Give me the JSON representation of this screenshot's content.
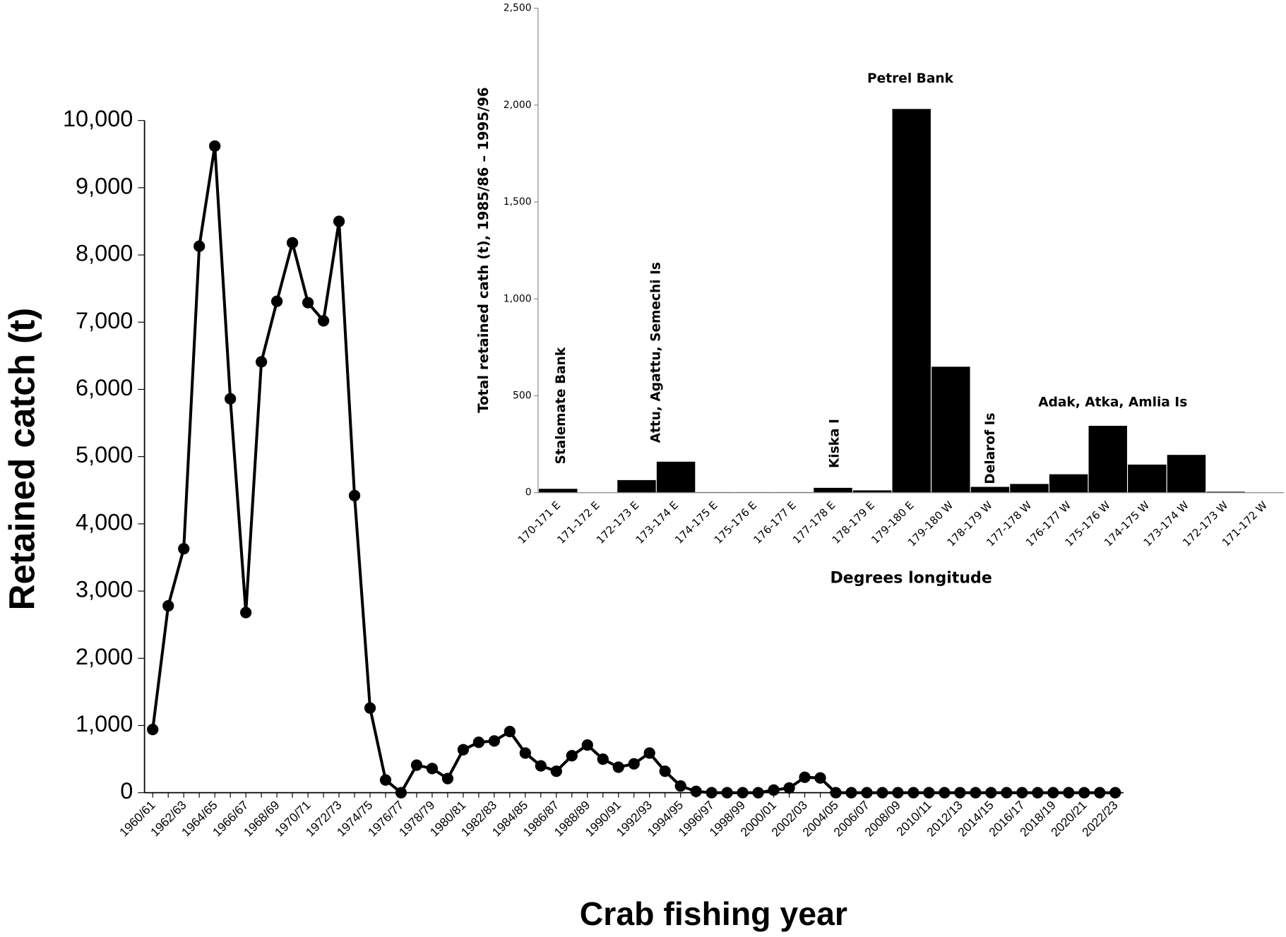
{
  "chart_data": [
    {
      "type": "line",
      "y_label": "Retained catch (t)",
      "x_label": "Crab fishing year",
      "categories": [
        "1960/61",
        null,
        "1962/63",
        null,
        "1964/65",
        null,
        "1966/67",
        null,
        "1968/69",
        null,
        "1970/71",
        null,
        "1972/73",
        null,
        "1974/75",
        null,
        "1976/77",
        null,
        "1978/79",
        null,
        "1980/81",
        null,
        "1982/83",
        null,
        "1984/85",
        null,
        "1986/87",
        null,
        "1988/89",
        null,
        "1990/91",
        null,
        "1992/93",
        null,
        "1994/95",
        null,
        "1996/97",
        null,
        "1998/99",
        null,
        "2000/01",
        null,
        "2002/03",
        null,
        "2004/05",
        null,
        "2006/07",
        null,
        "2008/09",
        null,
        "2010/11",
        null,
        "2012/13",
        null,
        "2014/15",
        null,
        "2016/17",
        null,
        "2018/19",
        null,
        "2020/21",
        null,
        "2022/23"
      ],
      "values": [
        940,
        2780,
        3630,
        8130,
        9620,
        5860,
        2680,
        6410,
        7310,
        8180,
        7290,
        7020,
        8500,
        4420,
        1260,
        190,
        0,
        410,
        360,
        210,
        640,
        750,
        770,
        910,
        590,
        400,
        320,
        550,
        710,
        500,
        380,
        430,
        590,
        320,
        100,
        20,
        0,
        0,
        0,
        0,
        40,
        70,
        230,
        220,
        0,
        0,
        0,
        0,
        0,
        0,
        0,
        0,
        0,
        0,
        0,
        0,
        0,
        0,
        0,
        0,
        0,
        0,
        0
      ],
      "color": "#000000",
      "ylim": [
        0,
        10000
      ],
      "yticks": [
        0,
        {
          "value": 1000,
          "label": "1,000"
        },
        {
          "value": 2000,
          "label": "2,000"
        },
        {
          "value": 3000,
          "label": "3,000"
        },
        {
          "value": 4000,
          "label": "4,000"
        },
        {
          "value": 5000,
          "label": "5,000"
        },
        {
          "value": 6000,
          "label": "6,000"
        },
        {
          "value": 7000,
          "label": "7,000"
        },
        {
          "value": 8000,
          "label": "8,000"
        },
        {
          "value": 9000,
          "label": "9,000"
        },
        {
          "value": 10000,
          "label": "10,000"
        }
      ],
      "grid": false
    },
    {
      "type": "bar",
      "y_label": "Total retained cath (t), 1985/86 – 1995/96",
      "x_label": "Degrees longitude",
      "categories": [
        "170-171 E",
        "171-172 E",
        "172-173 E",
        "173-174 E",
        "174-175 E",
        "175-176 E",
        "176-177 E",
        "177-178 E",
        "178-179 E",
        "179-180 E",
        "179-180 W",
        "178-179 W",
        "177-178 W",
        "176-177 W",
        "175-176 W",
        "174-175 W",
        "173-174 W",
        "172-173 W",
        "171-172 W"
      ],
      "values": [
        20,
        0,
        65,
        160,
        3,
        3,
        3,
        25,
        12,
        1980,
        650,
        30,
        45,
        95,
        345,
        145,
        195,
        5,
        0
      ],
      "color": "#000000",
      "ylim": [
        0,
        2500
      ],
      "yticks": [
        0,
        500,
        {
          "value": 1000,
          "label": "1,000"
        },
        {
          "value": 1500,
          "label": "1,500"
        },
        {
          "value": 2000,
          "label": "2,000"
        },
        {
          "value": 2500,
          "label": "2,500"
        }
      ],
      "annotations": [
        "Stalemate Bank",
        "Attu, Agattu, Semechi Is",
        "Kiska I",
        "Petrel Bank",
        "Delarof Is",
        "Adak, Atka, Amlia Is"
      ],
      "grid": false
    }
  ]
}
